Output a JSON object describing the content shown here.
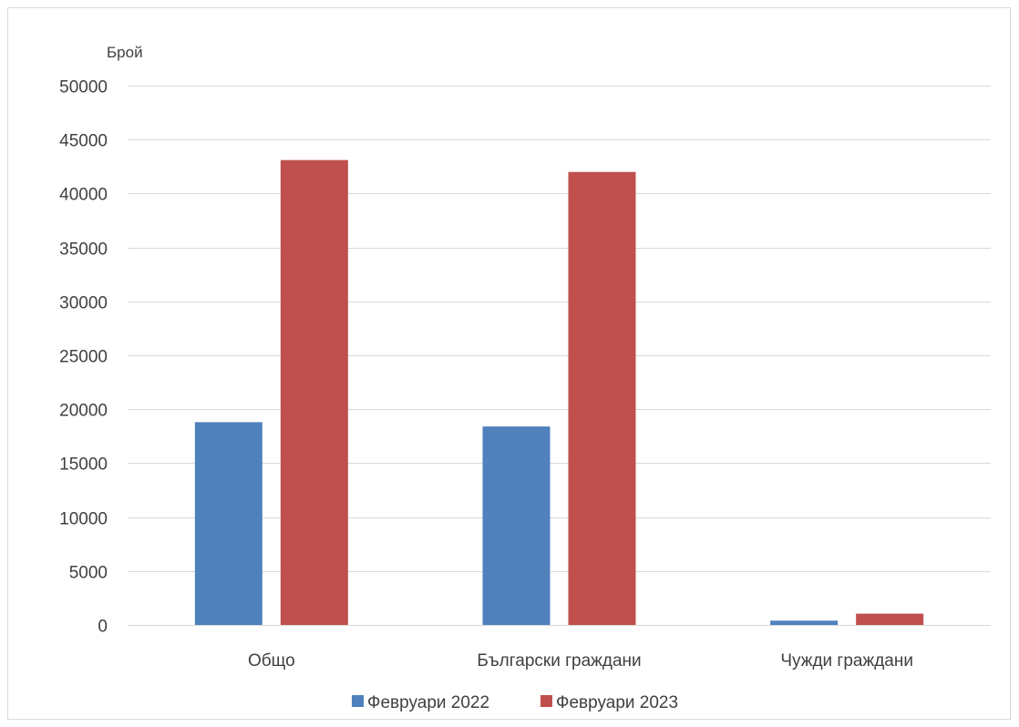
{
  "chart_data": {
    "type": "bar",
    "title": "",
    "xlabel": "",
    "ylabel": "Брой",
    "ylim": [
      0,
      50000
    ],
    "yticks": [
      0,
      5000,
      10000,
      15000,
      20000,
      25000,
      30000,
      35000,
      40000,
      45000,
      50000
    ],
    "grid": true,
    "legend_position": "bottom",
    "categories": [
      "Общо",
      "Български граждани",
      "Чужди граждани"
    ],
    "series": [
      {
        "name": "Февруари 2022",
        "color": "#4f81bd",
        "values": [
          18800,
          18400,
          400
        ]
      },
      {
        "name": "Февруари 2023",
        "color": "#c0504d",
        "values": [
          43100,
          42000,
          1050
        ]
      }
    ]
  }
}
